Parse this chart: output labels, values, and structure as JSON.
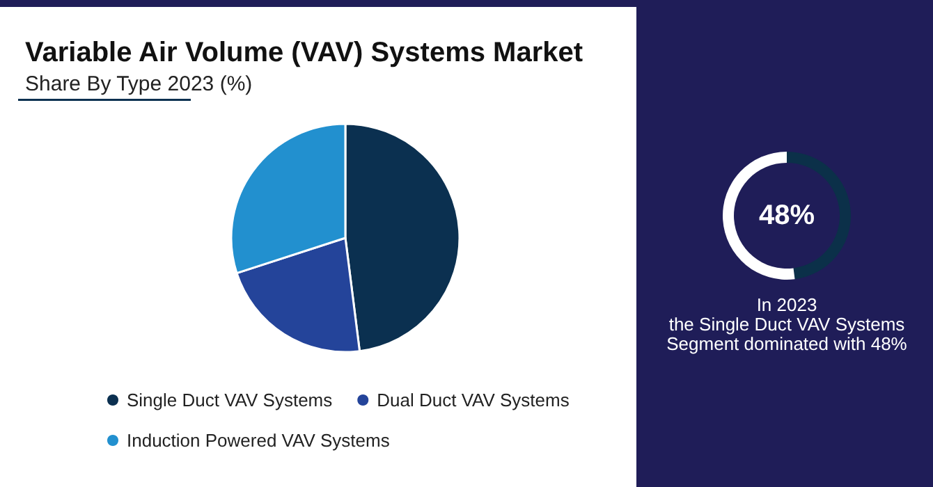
{
  "chart_data": [
    {
      "type": "pie",
      "title": "Variable Air Volume (VAV) Systems Market",
      "subtitle": "Share By Type 2023 (%)",
      "categories": [
        "Single Duct VAV Systems",
        "Dual Duct VAV Systems",
        "Induction Powered VAV Systems"
      ],
      "values": [
        48,
        22,
        30
      ],
      "colors": [
        "#0b3050",
        "#24449a",
        "#2290cf"
      ],
      "legend": "bottom"
    },
    {
      "type": "donut",
      "categories": [
        null,
        null
      ],
      "values": [
        48,
        52
      ],
      "colors": [
        "#0b3049",
        "#ffffff"
      ],
      "value_labels": [
        "48%",
        null
      ],
      "annotations": [
        "In 2023\nthe Single Duct VAV Systems\nSegment dominated with 48%"
      ]
    }
  ]
}
